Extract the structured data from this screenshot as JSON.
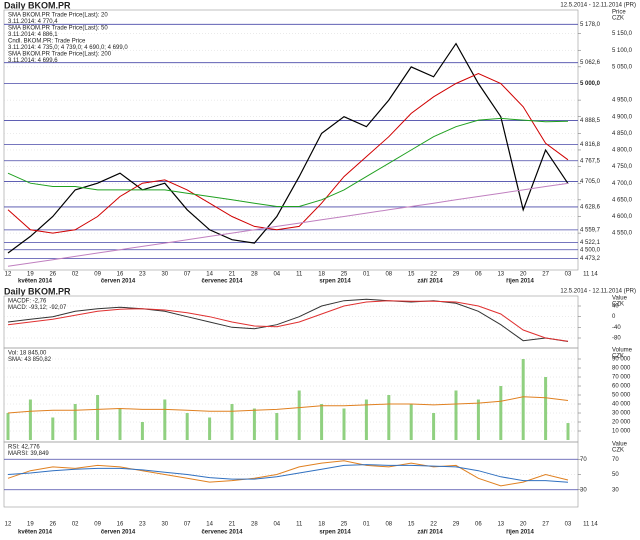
{
  "header": {
    "title": "Daily BKOM.PR",
    "range": "12.5.2014 - 12.11.2014 (PR)"
  },
  "chart_data": [
    {
      "type": "line",
      "axis_label": [
        "Price",
        "CZK"
      ],
      "categories": [
        "12",
        "19",
        "26",
        "02",
        "09",
        "16",
        "23",
        "30",
        "07",
        "14",
        "21",
        "28",
        "04",
        "11",
        "18",
        "25",
        "01",
        "08",
        "15",
        "22",
        "29",
        "06",
        "13",
        "20",
        "27",
        "03",
        "11 14"
      ],
      "months": [
        "květen 2014",
        "červen 2014",
        "červenec 2014",
        "srpen 2014",
        "září 2014",
        "říjen 2014"
      ],
      "legend": [
        "SMA BKOM.PR Trade Price(Last): 20",
        "3.11.2014: 4 770,4",
        "SMA BKOM.PR Trade Price(Last): 50",
        "3.11.2014: 4 886,1",
        "Cndl. BKOM.PR: Trade Price",
        "3.11.2014: 4 735,0; 4 739,0; 4 690,0; 4 699,0",
        "SMA BKOM.PR Trade Price(Last): 200",
        "3.11.2014: 4 699,6"
      ],
      "legend_colors": [
        "#d00000",
        "#d00000",
        "#20a020",
        "#20a020",
        "#000000",
        "#000000",
        "#c040c0",
        "#c040c0"
      ],
      "ylim": [
        4445,
        5215
      ],
      "yticks": [
        {
          "value": 5150,
          "label": "5 150,0"
        },
        {
          "value": 5100,
          "label": "5 100,0"
        },
        {
          "value": 5050,
          "label": "5 050,0"
        },
        {
          "value": 4950,
          "label": "4 950,0"
        },
        {
          "value": 4900,
          "label": "4 900,0"
        },
        {
          "value": 4850,
          "label": "4 850,0"
        },
        {
          "value": 4800,
          "label": "4 800,0"
        },
        {
          "value": 4750,
          "label": "4 750,0"
        },
        {
          "value": 4700,
          "label": "4 700,0"
        },
        {
          "value": 4650,
          "label": "4 650,0"
        },
        {
          "value": 4600,
          "label": "4 600,0"
        },
        {
          "value": 4550,
          "label": "4 550,0"
        }
      ],
      "levels": [
        {
          "value": 5178,
          "label": "5 178,0"
        },
        {
          "value": 5062.6,
          "label": "5 062,6"
        },
        {
          "value": 5000,
          "label": "5 000,0"
        },
        {
          "value": 4888.5,
          "label": "4 888,5"
        },
        {
          "value": 4816.8,
          "label": "4 816,8"
        },
        {
          "value": 4767.5,
          "label": "4 767,5"
        },
        {
          "value": 4705,
          "label": "4 705,0"
        },
        {
          "value": 4628.6,
          "label": "4 628,6"
        },
        {
          "value": 4559.7,
          "label": "4 559,7"
        },
        {
          "value": 4522.1,
          "label": "4 522,1"
        },
        {
          "value": 4473.2,
          "label": "4 473,2"
        },
        {
          "value": 4500,
          "label": "4 500,0"
        }
      ],
      "level_color": "#4848a8",
      "series": [
        {
          "color": "#000000",
          "values": [
            4490,
            4540,
            4600,
            4680,
            4700,
            4730,
            4680,
            4700,
            4620,
            4560,
            4530,
            4520,
            4600,
            4720,
            4850,
            4900,
            4870,
            4950,
            5050,
            5020,
            5120,
            5000,
            4900,
            4620,
            4800,
            4699,
            null
          ]
        },
        {
          "color": "#d00000",
          "values": [
            4620,
            4560,
            4550,
            4560,
            4600,
            4660,
            4700,
            4710,
            4680,
            4640,
            4600,
            4570,
            4560,
            4570,
            4640,
            4720,
            4780,
            4840,
            4910,
            4960,
            5000,
            5030,
            5000,
            4930,
            4820,
            4770.4,
            null
          ]
        },
        {
          "color": "#20a020",
          "values": [
            4730,
            4700,
            4690,
            4690,
            4680,
            4680,
            4680,
            4680,
            4670,
            4660,
            4650,
            4640,
            4630,
            4630,
            4650,
            4680,
            4720,
            4760,
            4800,
            4840,
            4870,
            4890,
            4895,
            4890,
            4885,
            4886.1,
            null
          ]
        },
        {
          "color": "#c080c0",
          "values": [
            4450,
            4460,
            4470,
            4480,
            4490,
            4500,
            4510,
            4520,
            4530,
            4540,
            4550,
            4560,
            4570,
            4580,
            4590,
            4600,
            4610,
            4620,
            4630,
            4640,
            4650,
            4660,
            4670,
            4680,
            4690,
            4699.6,
            null
          ]
        }
      ]
    },
    {
      "type": "line",
      "axis_label": [
        "Value",
        "CZK"
      ],
      "legend": [
        "MACDF: -2,76",
        "MACD: -93,12; -92,07"
      ],
      "legend_colors": [
        "#000000",
        "#000000"
      ],
      "ylim": [
        -110,
        70
      ],
      "yticks": [
        40,
        0,
        -40,
        -80
      ],
      "series": [
        {
          "color": "#333333",
          "values": [
            -20,
            -10,
            0,
            20,
            30,
            35,
            30,
            20,
            0,
            -20,
            -40,
            -45,
            -30,
            0,
            40,
            60,
            65,
            60,
            55,
            60,
            50,
            20,
            -30,
            -90,
            -80,
            -93.12,
            null
          ]
        },
        {
          "color": "#e03030",
          "values": [
            -30,
            -20,
            -10,
            5,
            20,
            28,
            30,
            25,
            15,
            0,
            -20,
            -35,
            -38,
            -20,
            10,
            40,
            55,
            60,
            58,
            58,
            55,
            40,
            10,
            -50,
            -80,
            -92.07,
            null
          ]
        }
      ]
    },
    {
      "type": "bar",
      "axis_label": [
        "Volume",
        "CZK"
      ],
      "legend": [
        "Vol: 18 845,00",
        "SMA: 43 850,82"
      ],
      "legend_colors": [
        "#20a020",
        "#e08020"
      ],
      "ylim": [
        0,
        100000
      ],
      "yticks": [
        {
          "value": 90000,
          "label": "90 000"
        },
        {
          "value": 80000,
          "label": "80 000"
        },
        {
          "value": 70000,
          "label": "70 000"
        },
        {
          "value": 60000,
          "label": "60 000"
        },
        {
          "value": 50000,
          "label": "50 000"
        },
        {
          "value": 40000,
          "label": "40 000"
        },
        {
          "value": 30000,
          "label": "30 000"
        },
        {
          "value": 20000,
          "label": "20 000"
        },
        {
          "value": 10000,
          "label": "10 000"
        }
      ],
      "bar_color": "#90d080",
      "values": [
        30000,
        45000,
        25000,
        40000,
        50000,
        35000,
        20000,
        45000,
        30000,
        25000,
        40000,
        35000,
        30000,
        55000,
        40000,
        35000,
        45000,
        50000,
        40000,
        30000,
        55000,
        45000,
        60000,
        90000,
        70000,
        18845,
        null
      ],
      "series": [
        {
          "color": "#e08020",
          "values": [
            30000,
            32000,
            33000,
            33000,
            34000,
            35000,
            34000,
            34000,
            33000,
            32000,
            32000,
            33000,
            34000,
            36000,
            38000,
            38000,
            39000,
            40000,
            40000,
            39000,
            40000,
            41000,
            43000,
            48000,
            47000,
            43850.82,
            null
          ]
        }
      ]
    },
    {
      "type": "line",
      "axis_label": [
        "Value",
        "CZK"
      ],
      "legend": [
        "RSI: 42,776",
        "MARSI: 39,849"
      ],
      "legend_colors": [
        "#e08020",
        "#3070c0"
      ],
      "ylim": [
        10,
        90
      ],
      "yticks": [
        70,
        50,
        30
      ],
      "levels": [
        {
          "value": 70,
          "label": "70"
        },
        {
          "value": 30,
          "label": "30"
        }
      ],
      "level_color": "#4848a8",
      "series": [
        {
          "color": "#e08020",
          "values": [
            45,
            55,
            60,
            58,
            62,
            60,
            55,
            50,
            45,
            40,
            42,
            45,
            50,
            60,
            65,
            68,
            62,
            60,
            65,
            60,
            62,
            45,
            35,
            40,
            50,
            42.776,
            null
          ]
        },
        {
          "color": "#3070c0",
          "values": [
            50,
            52,
            55,
            57,
            58,
            58,
            56,
            53,
            50,
            46,
            44,
            44,
            47,
            52,
            57,
            62,
            63,
            62,
            62,
            61,
            60,
            55,
            47,
            42,
            42,
            39.849,
            null
          ]
        }
      ]
    }
  ]
}
